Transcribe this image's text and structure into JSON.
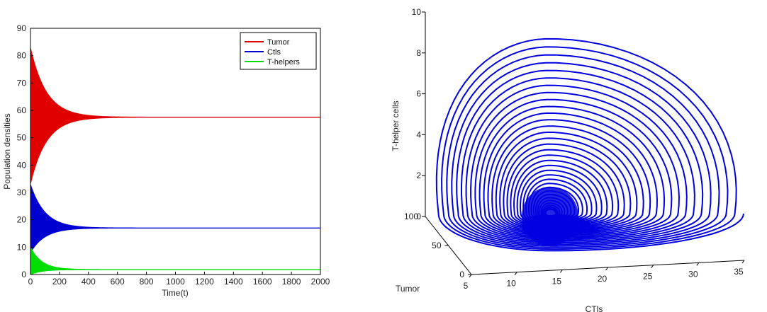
{
  "chart_data": [
    {
      "type": "line",
      "title": "",
      "xlabel": "Time(t)",
      "ylabel": "Population densities",
      "xlim": [
        0,
        2000
      ],
      "ylim": [
        0,
        90
      ],
      "xticks": [
        0,
        200,
        400,
        600,
        800,
        1000,
        1200,
        1400,
        1600,
        1800,
        2000
      ],
      "yticks": [
        0,
        10,
        20,
        30,
        40,
        50,
        60,
        70,
        80,
        90
      ],
      "legend_position": "top-right",
      "grid": false,
      "series": [
        {
          "name": "Tumor",
          "color": "#e00000",
          "equilibrium": 57.5,
          "initial_band": [
            33,
            83
          ],
          "settle_time": 500
        },
        {
          "name": "Ctls",
          "color": "#0000d0",
          "equilibrium": 17,
          "initial_band": [
            8,
            33
          ],
          "settle_time": 450
        },
        {
          "name": "T-helpers",
          "color": "#00dd00",
          "equilibrium": 1.8,
          "initial_band": [
            0,
            10
          ],
          "settle_time": 350
        }
      ]
    },
    {
      "type": "line",
      "title": "",
      "projection": "3d",
      "xlabel": "CTls",
      "ylabel": "Tumor",
      "zlabel": "T-helper cells",
      "xlim": [
        5,
        35
      ],
      "ylim": [
        0,
        100
      ],
      "zlim": [
        0,
        10
      ],
      "xticks": [
        5,
        10,
        15,
        20,
        25,
        30,
        35
      ],
      "yticks": [
        0,
        50,
        100
      ],
      "zticks": [
        0,
        2,
        4,
        6,
        8,
        10
      ],
      "grid": false,
      "series": [
        {
          "name": "",
          "color": "#0000e0",
          "description_note_free": true
        }
      ]
    }
  ]
}
